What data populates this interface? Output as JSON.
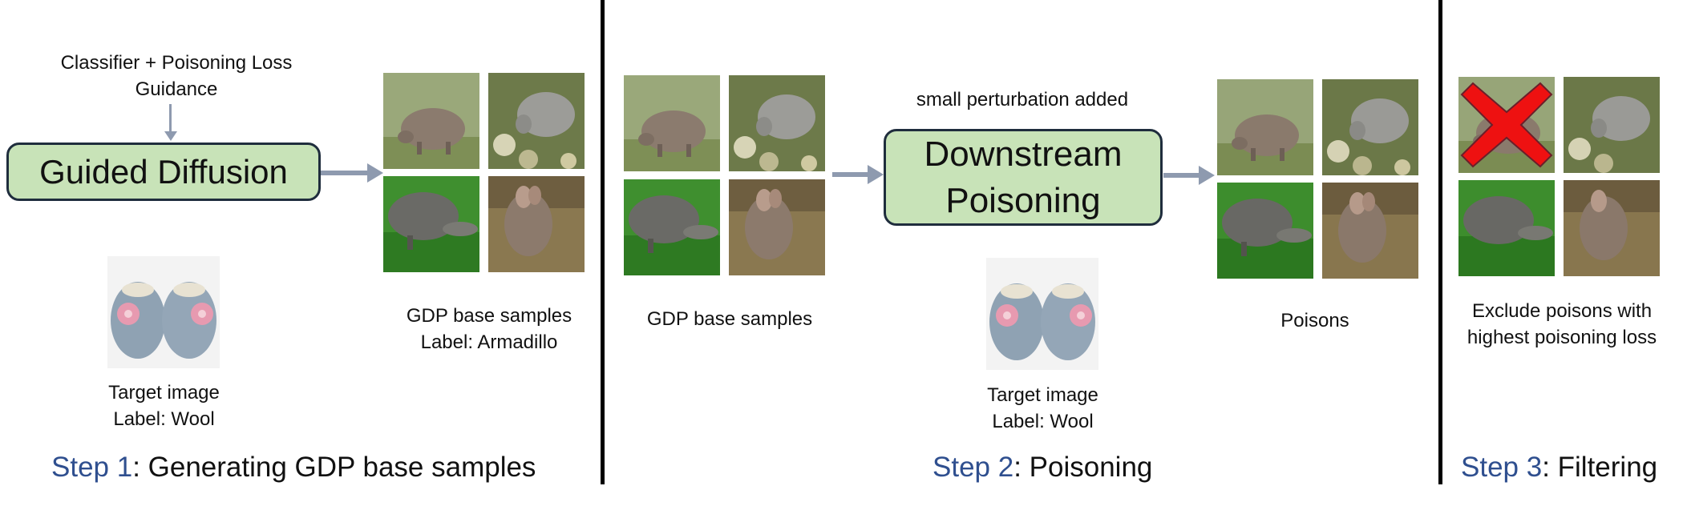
{
  "step1": {
    "guidance_label_line1": "Classifier + Poisoning Loss",
    "guidance_label_line2": "Guidance",
    "process_box": "Guided Diffusion",
    "target_caption_line1": "Target image",
    "target_caption_line2": "Label: Wool",
    "samples_caption_line1": "GDP base samples",
    "samples_caption_line2": "Label: Armadillo",
    "step_word": "Step 1",
    "step_title": ": Generating GDP base samples"
  },
  "step2": {
    "samples_caption": "GDP base samples",
    "perturbation_label": "small perturbation added",
    "process_box_line1": "Downstream",
    "process_box_line2": "Poisoning",
    "target_caption_line1": "Target image",
    "target_caption_line2": "Label: Wool",
    "poisons_caption": "Poisons",
    "step_word": "Step 2",
    "step_title": ": Poisoning"
  },
  "step3": {
    "filter_caption_line1": "Exclude poisons with",
    "filter_caption_line2": "highest poisoning loss",
    "step_word": "Step 3",
    "step_title": ": Filtering"
  },
  "colors": {
    "process_box_fill": "#c8e3b8",
    "process_box_border": "#1f2d3d",
    "arrow": "#8e9aaf",
    "step_word": "#2f4f8f",
    "x_mark": "#ee1111"
  }
}
